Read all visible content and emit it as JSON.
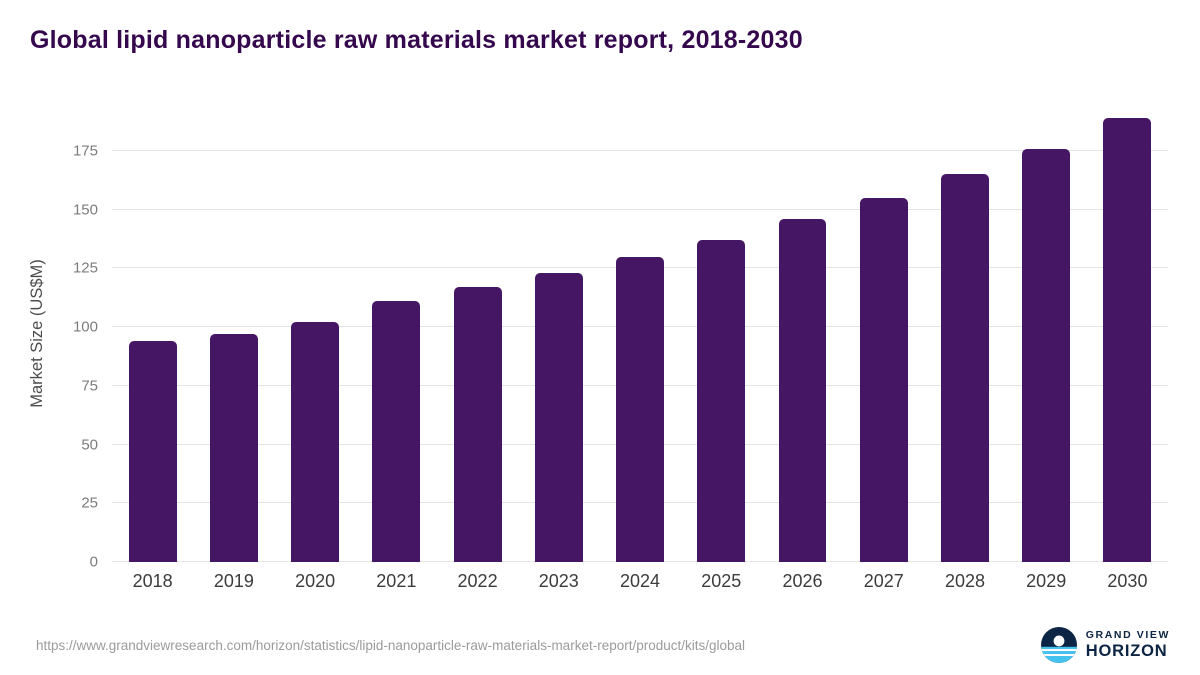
{
  "title": "Global lipid nanoparticle raw materials market report, 2018-2030",
  "chart_data": {
    "type": "bar",
    "title": "Global lipid nanoparticle raw materials market report, 2018-2030",
    "categories": [
      "2018",
      "2019",
      "2020",
      "2021",
      "2022",
      "2023",
      "2024",
      "2025",
      "2026",
      "2027",
      "2028",
      "2029",
      "2030"
    ],
    "values": [
      94,
      97,
      102,
      111,
      117,
      123,
      130,
      137,
      146,
      155,
      165,
      176,
      189
    ],
    "xlabel": "",
    "ylabel": "Market Size (US$M)",
    "ylim": [
      0,
      195
    ],
    "yticks": [
      0,
      25,
      50,
      75,
      100,
      125,
      150,
      175
    ],
    "grid": true,
    "legend": false,
    "bar_color": "#451663"
  },
  "footer": {
    "source_url": "https://www.grandviewresearch.com/horizon/statistics/lipid-nanoparticle-raw-materials-market-report/product/kits/global",
    "brand": {
      "line1": "GRAND VIEW",
      "line2": "HORIZON"
    }
  },
  "colors": {
    "title": "#35084e",
    "bar": "#451663",
    "grid": "#e4e4e4",
    "y_tick_text": "#7c7c7c",
    "x_tick_text": "#3c3c3c",
    "source_text": "#9b9b9b",
    "brand_navy": "#0c2544",
    "brand_blue": "#45c2ee"
  }
}
